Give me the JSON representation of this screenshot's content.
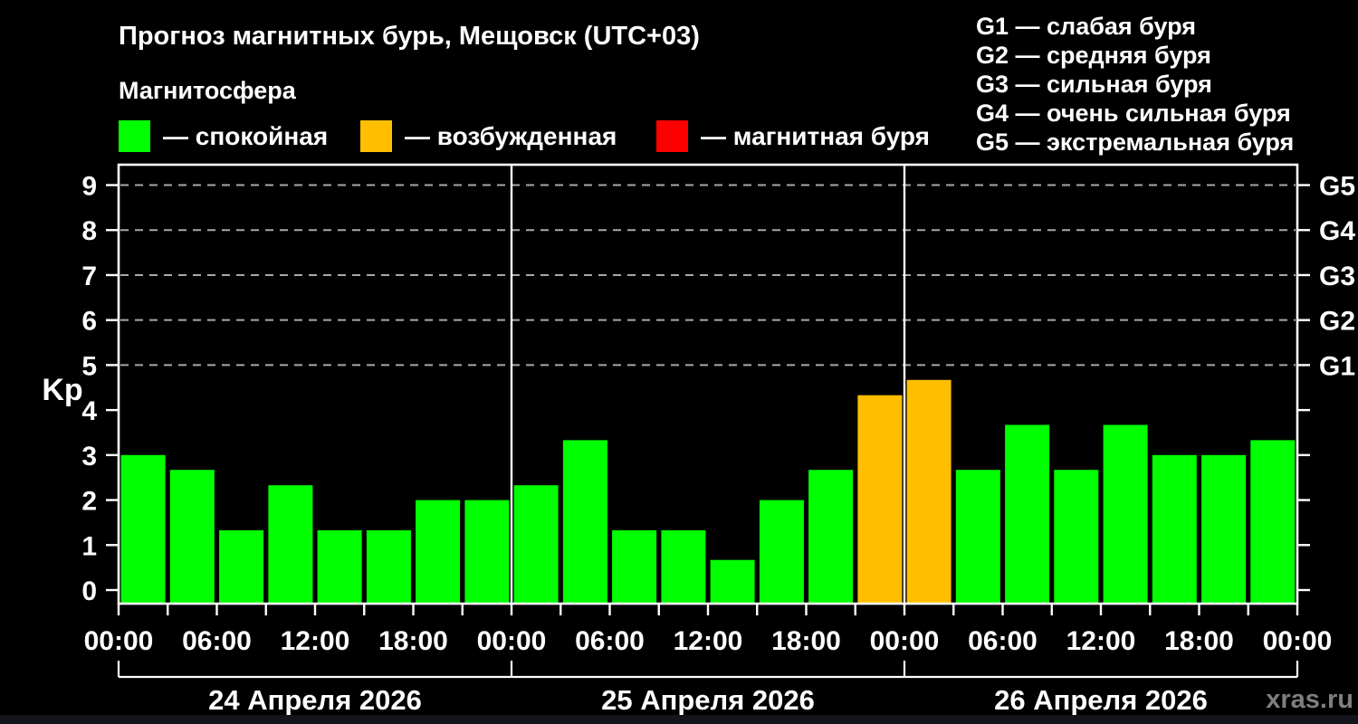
{
  "header": {
    "title": "Прогноз магнитных бурь, Мещовск (UTC+03)",
    "subtitle": "Магнитосфера"
  },
  "legend": {
    "items": [
      {
        "label": "— спокойная",
        "color": "#00ff00"
      },
      {
        "label": "— возбужденная",
        "color": "#ffbe00"
      },
      {
        "label": "— магнитная буря",
        "color": "#ff0000"
      }
    ]
  },
  "g_legend": {
    "items": [
      "G1 — слабая буря",
      "G2 — средняя буря",
      "G3 — сильная буря",
      "G4 — очень сильная буря",
      "G5 — экстремальная буря"
    ]
  },
  "watermark": "xras.ru",
  "chart_data": {
    "type": "bar",
    "title": "Прогноз магнитных бурь, Мещовск (UTC+03)",
    "subtitle": "Магнитосфера",
    "ylabel": "Kp",
    "ylim": [
      0,
      9
    ],
    "y_ticks": [
      0,
      1,
      2,
      3,
      4,
      5,
      6,
      7,
      8,
      9
    ],
    "grid": "dashed horizontal lines at Kp 5..9 (G1..G5), legend top-right",
    "bar_hours": 3,
    "x_tick_labels": [
      "00:00",
      "06:00",
      "12:00",
      "18:00",
      "00:00",
      "06:00",
      "12:00",
      "18:00",
      "00:00",
      "06:00",
      "12:00",
      "18:00",
      "00:00"
    ],
    "g_levels": [
      {
        "kp": 5,
        "label": "G1"
      },
      {
        "kp": 6,
        "label": "G2"
      },
      {
        "kp": 7,
        "label": "G3"
      },
      {
        "kp": 8,
        "label": "G4"
      },
      {
        "kp": 9,
        "label": "G5"
      }
    ],
    "days": [
      {
        "date": "24 Апреля 2026",
        "values": [
          3.0,
          2.67,
          1.33,
          2.33,
          1.33,
          1.33,
          2.0,
          2.0
        ]
      },
      {
        "date": "25 Апреля 2026",
        "values": [
          2.33,
          3.33,
          1.33,
          1.33,
          0.67,
          2.0,
          2.67,
          4.33
        ]
      },
      {
        "date": "26 Апреля 2026",
        "values": [
          4.67,
          2.67,
          3.67,
          2.67,
          3.67,
          3.0,
          3.0,
          3.33
        ]
      }
    ],
    "colors": {
      "quiet": "#00ff00",
      "excited": "#ffbe00",
      "storm": "#ff0000"
    },
    "thresholds": {
      "excited_min": 4,
      "storm_min": 5
    }
  }
}
